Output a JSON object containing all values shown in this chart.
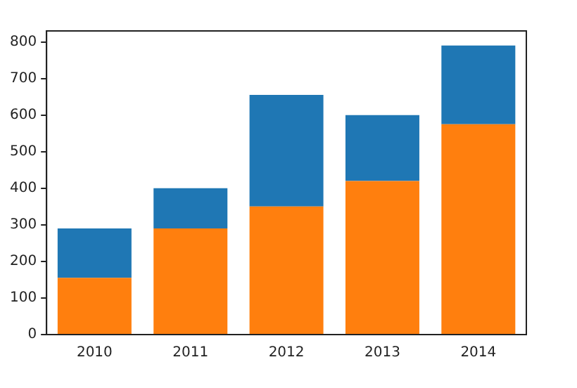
{
  "chart_data": {
    "type": "bar",
    "stacked": true,
    "categories": [
      "2010",
      "2011",
      "2012",
      "2013",
      "2014"
    ],
    "series": [
      {
        "color": "#ff7f0e",
        "values": [
          155,
          290,
          350,
          420,
          575
        ]
      },
      {
        "color": "#1f77b4",
        "values": [
          135,
          110,
          305,
          180,
          215
        ]
      }
    ],
    "ylim": [
      0,
      830
    ],
    "yticks": [
      0,
      100,
      200,
      300,
      400,
      500,
      600,
      700,
      800
    ],
    "grid": false,
    "legend": false
  }
}
